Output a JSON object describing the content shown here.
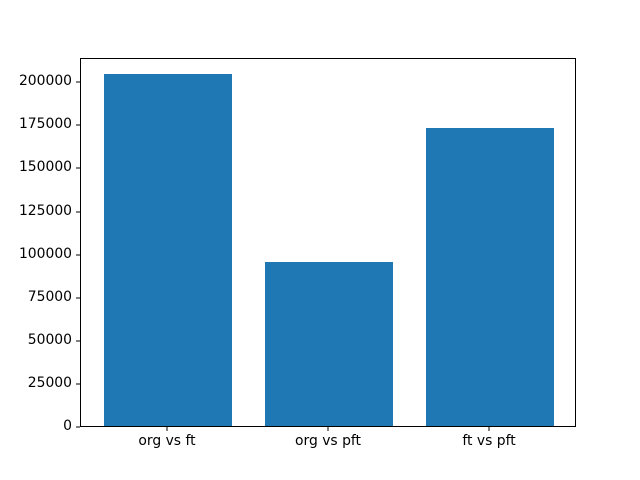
{
  "chart_data": {
    "type": "bar",
    "categories": [
      "org vs ft",
      "org vs pft",
      "ft vs pft"
    ],
    "values": [
      204000,
      95000,
      173000
    ],
    "bar_color": "#1f77b4",
    "spine_color": "#000000",
    "background_color": "#ffffff",
    "ylim": [
      0,
      214200
    ],
    "yticks": [
      0,
      25000,
      50000,
      75000,
      100000,
      125000,
      150000,
      175000,
      200000
    ],
    "ytick_labels": [
      "0",
      "25000",
      "50000",
      "75000",
      "100000",
      "125000",
      "150000",
      "175000",
      "200000"
    ],
    "grid": false,
    "legend": null
  }
}
